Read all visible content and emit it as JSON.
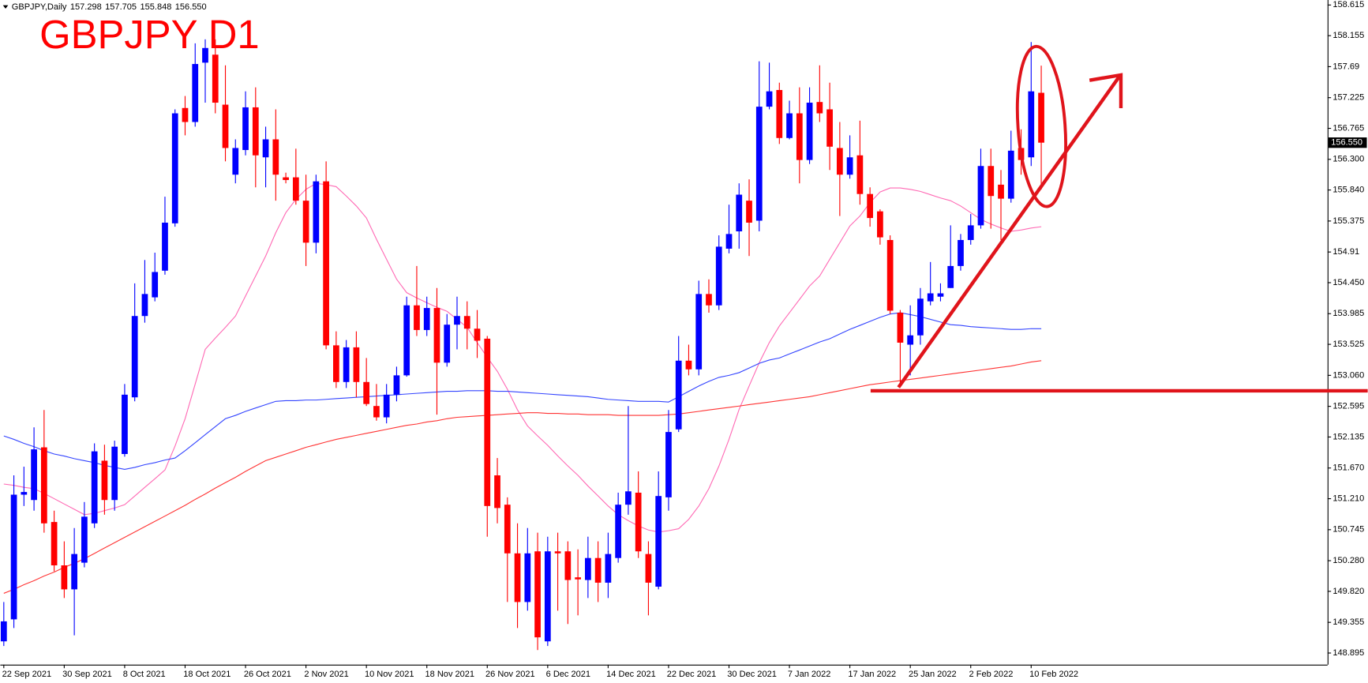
{
  "chart_data": {
    "type": "candlestick",
    "title": "GBPJPY D1",
    "info": {
      "label": "GBPJPY,Daily",
      "values": [
        157.298,
        157.705,
        155.848,
        156.55
      ],
      "value_labels": [
        "157.298",
        "157.705",
        "155.848",
        "156.550"
      ]
    },
    "current_price": {
      "value": 156.55,
      "label": "156.550"
    },
    "up_color": "#0000ff",
    "down_color": "#ff0000",
    "grid": false,
    "categories": [
      "22 Sep 2021",
      null,
      null,
      null,
      null,
      null,
      "30 Sep 2021",
      null,
      null,
      null,
      null,
      null,
      "8 Oct 2021",
      null,
      null,
      null,
      null,
      null,
      "18 Oct 2021",
      null,
      null,
      null,
      null,
      null,
      "26 Oct 2021",
      null,
      null,
      null,
      null,
      null,
      "2 Nov 2021",
      null,
      null,
      null,
      null,
      null,
      "10 Nov 2021",
      null,
      null,
      null,
      null,
      null,
      "18 Nov 2021",
      null,
      null,
      null,
      null,
      null,
      "26 Nov 2021",
      null,
      null,
      null,
      null,
      null,
      "6 Dec 2021",
      null,
      null,
      null,
      null,
      null,
      "14 Dec 2021",
      null,
      null,
      null,
      null,
      null,
      "22 Dec 2021",
      null,
      null,
      null,
      null,
      null,
      "30 Dec 2021",
      null,
      null,
      null,
      null,
      null,
      "7 Jan 2022",
      null,
      null,
      null,
      null,
      null,
      "17 Jan 2022",
      null,
      null,
      null,
      null,
      null,
      "25 Jan 2022",
      null,
      null,
      null,
      null,
      null,
      "2 Feb 2022",
      null,
      null,
      null,
      null,
      null,
      "10 Feb 2022",
      null
    ],
    "open": [
      149.07,
      149.4,
      151.27,
      151.19,
      151.98,
      150.86,
      150.21,
      149.85,
      150.25,
      150.84,
      151.78,
      151.19,
      151.88,
      152.73,
      153.95,
      154.23,
      154.63,
      155.34,
      157.07,
      156.86,
      157.75,
      157.87,
      157.12,
      156.07,
      156.44,
      157.08,
      156.33,
      156.6,
      156.03,
      156.03,
      155.68,
      155.05,
      155.97,
      153.51,
      152.96,
      153.48,
      152.96,
      152.6,
      152.43,
      152.77,
      153.06,
      154.11,
      153.74,
      154.07,
      153.25,
      153.82,
      153.95,
      153.76,
      153.61,
      151.56,
      151.12,
      150.39,
      149.66,
      150.42,
      149.07,
      150.42,
      150.42,
      150.03,
      149.99,
      150.32,
      149.95,
      150.32,
      151.12,
      151.3,
      150.38,
      149.89,
      151.23,
      152.25,
      153.28,
      153.15,
      154.28,
      154.11,
      154.96,
      155.22,
      155.68,
      155.38,
      157.09,
      157.34,
      156.62,
      156.99,
      156.29,
      157.16,
      157.05,
      156.47,
      156.07,
      156.36,
      155.78,
      155.52,
      155.09,
      154.0,
      153.52,
      153.66,
      154.17,
      154.24,
      154.37,
      154.7,
      155.09,
      155.31,
      156.2,
      155.92,
      155.71,
      156.47,
      156.33,
      157.298
    ],
    "high": [
      149.66,
      151.56,
      151.69,
      152.28,
      152.54,
      151.03,
      150.57,
      150.77,
      151.16,
      152.04,
      152.02,
      152.08,
      152.93,
      154.44,
      154.79,
      154.9,
      155.74,
      157.05,
      157.25,
      158.04,
      158.1,
      158.1,
      157.71,
      156.6,
      157.32,
      157.38,
      156.79,
      157.05,
      156.1,
      156.46,
      156.07,
      156.07,
      156.27,
      153.72,
      153.59,
      153.72,
      153.32,
      152.93,
      152.93,
      153.19,
      154.24,
      154.7,
      154.24,
      154.37,
      153.98,
      154.24,
      154.17,
      154.04,
      153.65,
      151.82,
      151.23,
      150.84,
      150.77,
      150.7,
      150.64,
      150.7,
      150.57,
      150.45,
      150.64,
      150.57,
      150.7,
      151.3,
      152.6,
      151.62,
      150.57,
      151.62,
      152.54,
      153.65,
      153.52,
      154.48,
      154.5,
      155.16,
      155.62,
      155.94,
      156.0,
      157.77,
      157.75,
      157.45,
      157.18,
      157.38,
      157.38,
      157.71,
      157.45,
      156.86,
      156.66,
      156.88,
      155.88,
      155.55,
      155.16,
      154.04,
      154.11,
      154.37,
      154.76,
      154.44,
      155.31,
      155.18,
      155.48,
      156.46,
      156.46,
      156.14,
      156.73,
      156.75,
      158.06,
      157.705
    ],
    "low": [
      149.0,
      149.27,
      151.1,
      151.03,
      150.7,
      150.12,
      149.72,
      149.16,
      150.18,
      150.77,
      150.97,
      151.03,
      151.84,
      152.67,
      153.85,
      154.17,
      154.57,
      155.29,
      156.66,
      156.79,
      157.15,
      156.99,
      156.27,
      155.94,
      156.36,
      155.88,
      155.88,
      155.68,
      155.94,
      155.62,
      154.7,
      154.89,
      153.45,
      152.87,
      152.87,
      152.73,
      152.6,
      152.38,
      152.34,
      152.67,
      153.04,
      153.65,
      153.65,
      152.47,
      153.19,
      153.45,
      153.45,
      153.32,
      150.64,
      150.84,
      149.66,
      149.27,
      149.53,
      148.94,
      149.0,
      149.53,
      149.33,
      149.46,
      149.72,
      149.66,
      149.72,
      150.25,
      150.97,
      150.32,
      149.46,
      149.85,
      151.03,
      152.21,
      153.06,
      153.06,
      154.0,
      154.04,
      154.89,
      154.96,
      154.85,
      155.22,
      157.05,
      156.53,
      156.6,
      155.94,
      156.23,
      156.86,
      156.14,
      155.45,
      156.01,
      155.62,
      155.29,
      155.02,
      153.98,
      152.93,
      153.06,
      153.52,
      154.11,
      154.17,
      154.37,
      154.63,
      155.02,
      155.26,
      155.26,
      155.09,
      155.65,
      156.07,
      156.2,
      155.848
    ],
    "close": [
      149.37,
      151.27,
      151.31,
      151.95,
      150.84,
      150.21,
      149.85,
      150.38,
      150.94,
      151.92,
      151.19,
      151.99,
      152.77,
      153.95,
      154.28,
      154.61,
      155.35,
      156.99,
      156.86,
      157.73,
      157.97,
      157.15,
      156.47,
      156.47,
      157.08,
      156.36,
      156.6,
      156.07,
      155.99,
      155.68,
      155.05,
      155.97,
      153.51,
      152.96,
      153.48,
      152.96,
      152.63,
      152.43,
      152.77,
      153.06,
      154.11,
      153.74,
      154.07,
      153.25,
      153.82,
      153.95,
      153.76,
      153.58,
      151.1,
      151.07,
      150.39,
      149.66,
      150.39,
      149.13,
      150.42,
      150.39,
      149.99,
      150.0,
      150.32,
      149.95,
      150.38,
      151.12,
      151.32,
      150.42,
      149.95,
      151.25,
      152.21,
      153.28,
      153.15,
      154.28,
      154.11,
      154.99,
      155.18,
      155.77,
      155.35,
      157.09,
      157.32,
      156.62,
      156.99,
      156.29,
      157.15,
      156.99,
      156.49,
      156.07,
      156.33,
      155.78,
      155.42,
      155.13,
      154.03,
      153.55,
      153.66,
      154.21,
      154.29,
      154.29,
      154.7,
      155.09,
      155.31,
      156.2,
      155.75,
      155.71,
      156.43,
      156.29,
      157.32,
      156.55
    ],
    "overlays": [
      {
        "type": "line",
        "color": "#ff69b4",
        "values": [
          151.43,
          151.41,
          151.38,
          151.36,
          151.29,
          151.21,
          151.13,
          151.05,
          150.97,
          150.99,
          151.03,
          151.07,
          151.12,
          151.25,
          151.38,
          151.51,
          151.64,
          152.0,
          152.41,
          152.93,
          153.45,
          153.62,
          153.78,
          153.95,
          154.25,
          154.55,
          154.85,
          155.2,
          155.5,
          155.7,
          155.85,
          155.94,
          155.92,
          155.89,
          155.75,
          155.6,
          155.42,
          155.1,
          154.8,
          154.5,
          154.3,
          154.22,
          154.15,
          154.08,
          154.02,
          153.9,
          153.78,
          153.55,
          153.33,
          153.12,
          152.85,
          152.54,
          152.3,
          152.15,
          152.01,
          151.85,
          151.7,
          151.56,
          151.4,
          151.25,
          151.1,
          150.97,
          150.88,
          150.8,
          150.74,
          150.71,
          150.73,
          150.76,
          150.9,
          151.1,
          151.36,
          151.7,
          152.1,
          152.55,
          152.9,
          153.25,
          153.55,
          153.8,
          154.0,
          154.2,
          154.4,
          154.55,
          154.8,
          155.05,
          155.3,
          155.45,
          155.65,
          155.81,
          155.87,
          155.87,
          155.85,
          155.82,
          155.77,
          155.72,
          155.68,
          155.6,
          155.5,
          155.4,
          155.33,
          155.27,
          155.22,
          155.24,
          155.27,
          155.29
        ]
      },
      {
        "type": "line",
        "color": "#3344ff",
        "values": [
          152.15,
          152.1,
          152.04,
          151.99,
          151.93,
          151.88,
          151.85,
          151.81,
          151.78,
          151.75,
          151.71,
          151.68,
          151.65,
          151.68,
          151.72,
          151.75,
          151.79,
          151.82,
          151.93,
          152.05,
          152.17,
          152.29,
          152.41,
          152.46,
          152.52,
          152.57,
          152.62,
          152.67,
          152.68,
          152.68,
          152.69,
          152.69,
          152.7,
          152.71,
          152.72,
          152.73,
          152.74,
          152.75,
          152.76,
          152.77,
          152.78,
          152.79,
          152.8,
          152.81,
          152.82,
          152.82,
          152.83,
          152.83,
          152.83,
          152.82,
          152.82,
          152.81,
          152.8,
          152.79,
          152.78,
          152.77,
          152.76,
          152.75,
          152.74,
          152.72,
          152.7,
          152.69,
          152.68,
          152.67,
          152.67,
          152.67,
          152.66,
          152.74,
          152.82,
          152.9,
          152.97,
          153.03,
          153.06,
          153.1,
          153.17,
          153.24,
          153.29,
          153.32,
          153.38,
          153.44,
          153.5,
          153.56,
          153.61,
          153.68,
          153.75,
          153.81,
          153.87,
          153.93,
          153.98,
          154.0,
          153.97,
          153.94,
          153.9,
          153.86,
          153.82,
          153.81,
          153.79,
          153.78,
          153.77,
          153.76,
          153.75,
          153.75,
          153.76,
          153.76
        ]
      },
      {
        "type": "line",
        "color": "#ff3333",
        "values": [
          149.79,
          149.85,
          149.92,
          149.98,
          150.05,
          150.11,
          150.18,
          150.24,
          150.31,
          150.39,
          150.47,
          150.55,
          150.63,
          150.71,
          150.79,
          150.87,
          150.95,
          151.03,
          151.11,
          151.2,
          151.28,
          151.37,
          151.45,
          151.53,
          151.62,
          151.7,
          151.78,
          151.83,
          151.88,
          151.93,
          151.98,
          152.02,
          152.06,
          152.1,
          152.13,
          152.16,
          152.19,
          152.22,
          152.25,
          152.28,
          152.31,
          152.33,
          152.36,
          152.38,
          152.41,
          152.43,
          152.44,
          152.45,
          152.46,
          152.47,
          152.48,
          152.49,
          152.5,
          152.5,
          152.49,
          152.49,
          152.48,
          152.48,
          152.47,
          152.47,
          152.47,
          152.46,
          152.46,
          152.46,
          152.46,
          152.46,
          152.47,
          152.48,
          152.5,
          152.52,
          152.54,
          152.56,
          152.58,
          152.6,
          152.62,
          152.64,
          152.66,
          152.68,
          152.7,
          152.72,
          152.74,
          152.77,
          152.8,
          152.83,
          152.86,
          152.89,
          152.92,
          152.94,
          152.96,
          152.98,
          153.0,
          153.02,
          153.04,
          153.06,
          153.08,
          153.1,
          153.12,
          153.14,
          153.16,
          153.18,
          153.2,
          153.23,
          153.26,
          153.28
        ]
      }
    ],
    "ylim": [
      148.72,
      158.69
    ],
    "yticks": [
      158.615,
      158.155,
      157.69,
      157.225,
      156.765,
      {
        "value": 156.3,
        "label": "156.300"
      },
      {
        "value": 155.84,
        "label": "155.840"
      },
      155.375,
      154.91,
      {
        "value": 154.45,
        "label": "154.450"
      },
      153.985,
      153.525,
      {
        "value": 153.06,
        "label": "153.060"
      },
      152.595,
      152.135,
      {
        "value": 151.67,
        "label": "151.670"
      },
      {
        "value": 151.21,
        "label": "151.210"
      },
      150.745,
      {
        "value": 150.28,
        "label": "150.280"
      },
      {
        "value": 149.82,
        "label": "149.820"
      },
      149.355,
      148.895
    ]
  }
}
